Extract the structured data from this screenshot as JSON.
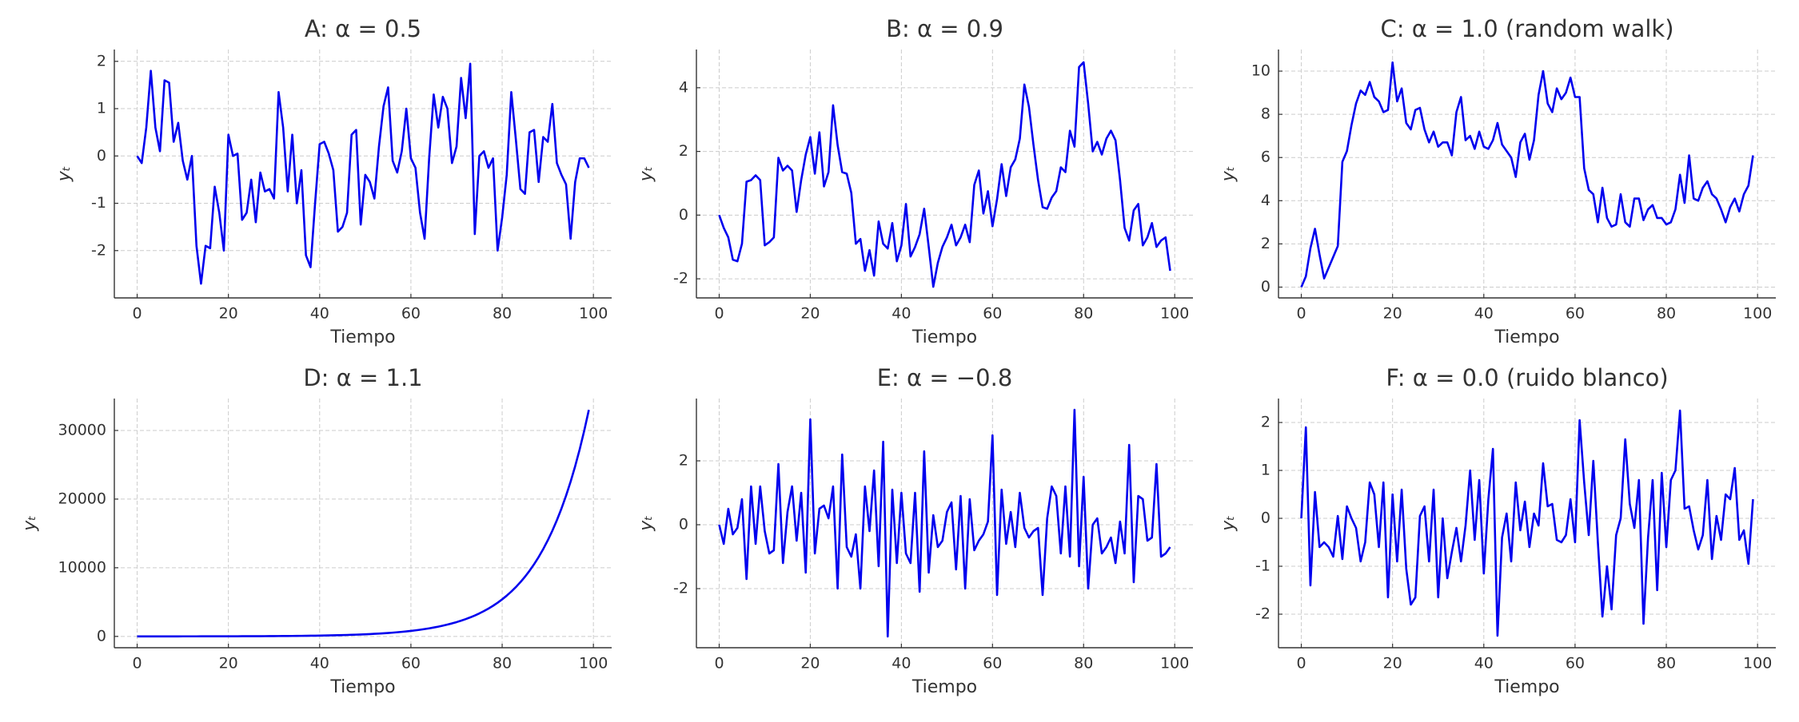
{
  "chart_data": [
    {
      "type": "line",
      "title": "A: α = 0.5",
      "xlabel": "Tiempo",
      "ylabel": "yₜ",
      "grid": true,
      "color": "#0000ee",
      "x": [
        0,
        1,
        2,
        3,
        4,
        5,
        6,
        7,
        8,
        9,
        10,
        11,
        12,
        13,
        14,
        15,
        16,
        17,
        18,
        19,
        20,
        21,
        22,
        23,
        24,
        25,
        26,
        27,
        28,
        29,
        30,
        31,
        32,
        33,
        34,
        35,
        36,
        37,
        38,
        39,
        40,
        41,
        42,
        43,
        44,
        45,
        46,
        47,
        48,
        49,
        50,
        51,
        52,
        53,
        54,
        55,
        56,
        57,
        58,
        59,
        60,
        61,
        62,
        63,
        64,
        65,
        66,
        67,
        68,
        69,
        70,
        71,
        72,
        73,
        74,
        75,
        76,
        77,
        78,
        79,
        80,
        81,
        82,
        83,
        84,
        85,
        86,
        87,
        88,
        89,
        90,
        91,
        92,
        93,
        94,
        95,
        96,
        97,
        98,
        99
      ],
      "values": [
        0,
        -0.15,
        0.6,
        1.8,
        0.6,
        0.1,
        1.6,
        1.55,
        0.3,
        0.7,
        -0.1,
        -0.5,
        0,
        -1.9,
        -2.7,
        -1.9,
        -1.95,
        -0.65,
        -1.2,
        -2.0,
        0.45,
        0,
        0.05,
        -1.35,
        -1.2,
        -0.5,
        -1.4,
        -0.35,
        -0.75,
        -0.7,
        -0.9,
        1.35,
        0.6,
        -0.75,
        0.45,
        -1.0,
        -0.3,
        -2.1,
        -2.35,
        -1.0,
        0.25,
        0.3,
        0.05,
        -0.3,
        -1.6,
        -1.5,
        -1.2,
        0.45,
        0.55,
        -1.45,
        -0.4,
        -0.55,
        -0.9,
        0.2,
        1.05,
        1.45,
        -0.1,
        -0.35,
        0.1,
        1.0,
        -0.05,
        -0.25,
        -1.2,
        -1.75,
        -0.05,
        1.3,
        0.6,
        1.25,
        1.0,
        -0.15,
        0.2,
        1.65,
        0.8,
        1.95,
        -1.65,
        0,
        0.1,
        -0.25,
        -0.05,
        -2.0,
        -1.3,
        -0.4,
        1.35,
        0.35,
        -0.7,
        -0.8,
        0.5,
        0.55,
        -0.55,
        0.4,
        0.3,
        1.1,
        -0.15,
        -0.4,
        -0.6,
        -1.75,
        -0.55,
        -0.05,
        -0.05,
        -0.25
      ],
      "xlim": [
        -5,
        104
      ],
      "xticks": [
        0,
        20,
        40,
        60,
        80,
        100
      ],
      "ylim": [
        -3.0,
        2.25
      ],
      "yticks": [
        -2,
        -1,
        0,
        1,
        2
      ]
    },
    {
      "type": "line",
      "title": "B: α = 0.9",
      "xlabel": "Tiempo",
      "ylabel": "yₜ",
      "grid": true,
      "color": "#0000ee",
      "x": [
        0,
        1,
        2,
        3,
        4,
        5,
        6,
        7,
        8,
        9,
        10,
        11,
        12,
        13,
        14,
        15,
        16,
        17,
        18,
        19,
        20,
        21,
        22,
        23,
        24,
        25,
        26,
        27,
        28,
        29,
        30,
        31,
        32,
        33,
        34,
        35,
        36,
        37,
        38,
        39,
        40,
        41,
        42,
        43,
        44,
        45,
        46,
        47,
        48,
        49,
        50,
        51,
        52,
        53,
        54,
        55,
        56,
        57,
        58,
        59,
        60,
        61,
        62,
        63,
        64,
        65,
        66,
        67,
        68,
        69,
        70,
        71,
        72,
        73,
        74,
        75,
        76,
        77,
        78,
        79,
        80,
        81,
        82,
        83,
        84,
        85,
        86,
        87,
        88,
        89,
        90,
        91,
        92,
        93,
        94,
        95,
        96,
        97,
        98,
        99
      ],
      "values": [
        0,
        -0.4,
        -0.7,
        -1.4,
        -1.45,
        -0.9,
        1.05,
        1.1,
        1.25,
        1.1,
        -0.95,
        -0.85,
        -0.7,
        1.8,
        1.4,
        1.55,
        1.4,
        0.1,
        1.1,
        1.9,
        2.45,
        1.3,
        2.6,
        0.9,
        1.35,
        3.45,
        2.2,
        1.35,
        1.3,
        0.7,
        -0.9,
        -0.75,
        -1.75,
        -1.1,
        -1.9,
        -0.2,
        -0.9,
        -1.05,
        -0.25,
        -1.45,
        -0.95,
        0.35,
        -1.3,
        -1.0,
        -0.6,
        0.2,
        -1.0,
        -2.25,
        -1.5,
        -1.0,
        -0.7,
        -0.3,
        -0.95,
        -0.7,
        -0.3,
        -0.85,
        0.95,
        1.4,
        0.05,
        0.75,
        -0.35,
        0.5,
        1.6,
        0.6,
        1.5,
        1.75,
        2.4,
        4.1,
        3.4,
        2.2,
        1.1,
        0.25,
        0.2,
        0.55,
        0.75,
        1.5,
        1.35,
        2.65,
        2.15,
        4.65,
        4.8,
        3.5,
        2.0,
        2.3,
        1.9,
        2.4,
        2.65,
        2.35,
        1.1,
        -0.4,
        -0.8,
        0.15,
        0.35,
        -0.95,
        -0.7,
        -0.25,
        -1.0,
        -0.8,
        -0.7,
        -1.75
      ],
      "xlim": [
        -5,
        104
      ],
      "xticks": [
        0,
        20,
        40,
        60,
        80,
        100
      ],
      "ylim": [
        -2.6,
        5.2
      ],
      "yticks": [
        -2,
        0,
        2,
        4
      ]
    },
    {
      "type": "line",
      "title": "C: α = 1.0 (random walk)",
      "xlabel": "Tiempo",
      "ylabel": "yₜ",
      "grid": true,
      "color": "#0000ee",
      "x": [
        0,
        1,
        2,
        3,
        4,
        5,
        6,
        7,
        8,
        9,
        10,
        11,
        12,
        13,
        14,
        15,
        16,
        17,
        18,
        19,
        20,
        21,
        22,
        23,
        24,
        25,
        26,
        27,
        28,
        29,
        30,
        31,
        32,
        33,
        34,
        35,
        36,
        37,
        38,
        39,
        40,
        41,
        42,
        43,
        44,
        45,
        46,
        47,
        48,
        49,
        50,
        51,
        52,
        53,
        54,
        55,
        56,
        57,
        58,
        59,
        60,
        61,
        62,
        63,
        64,
        65,
        66,
        67,
        68,
        69,
        70,
        71,
        72,
        73,
        74,
        75,
        76,
        77,
        78,
        79,
        80,
        81,
        82,
        83,
        84,
        85,
        86,
        87,
        88,
        89,
        90,
        91,
        92,
        93,
        94,
        95,
        96,
        97,
        98,
        99
      ],
      "values": [
        0,
        0.5,
        1.8,
        2.7,
        1.5,
        0.4,
        0.9,
        1.4,
        1.9,
        5.8,
        6.3,
        7.5,
        8.5,
        9.1,
        8.9,
        9.5,
        8.8,
        8.6,
        8.1,
        8.2,
        10.4,
        8.6,
        9.2,
        7.6,
        7.3,
        8.2,
        8.3,
        7.3,
        6.7,
        7.2,
        6.5,
        6.7,
        6.7,
        6.1,
        8.1,
        8.8,
        6.8,
        7.0,
        6.4,
        7.2,
        6.5,
        6.4,
        6.8,
        7.6,
        6.6,
        6.3,
        6.0,
        5.1,
        6.7,
        7.1,
        5.9,
        6.8,
        8.9,
        10.0,
        8.5,
        8.1,
        9.2,
        8.7,
        9.0,
        9.7,
        8.8,
        8.8,
        5.5,
        4.5,
        4.3,
        3.0,
        4.6,
        3.2,
        2.8,
        2.9,
        4.3,
        3.0,
        2.8,
        4.1,
        4.1,
        3.1,
        3.6,
        3.8,
        3.2,
        3.2,
        2.9,
        3.0,
        3.6,
        5.2,
        3.9,
        6.1,
        4.1,
        4.0,
        4.6,
        4.9,
        4.3,
        4.1,
        3.6,
        3.0,
        3.7,
        4.1,
        3.5,
        4.3,
        4.7,
        6.1
      ],
      "xlim": [
        -5,
        104
      ],
      "xticks": [
        0,
        20,
        40,
        60,
        80,
        100
      ],
      "ylim": [
        -0.5,
        11
      ],
      "yticks": [
        0,
        2,
        4,
        6,
        8,
        10
      ]
    },
    {
      "type": "line",
      "title": "D: α = 1.1",
      "xlabel": "Tiempo",
      "ylabel": "yₜ",
      "grid": true,
      "color": "#0000ee",
      "x": [
        0,
        1,
        2,
        3,
        4,
        5,
        6,
        7,
        8,
        9,
        10,
        11,
        12,
        13,
        14,
        15,
        16,
        17,
        18,
        19,
        20,
        21,
        22,
        23,
        24,
        25,
        26,
        27,
        28,
        29,
        30,
        31,
        32,
        33,
        34,
        35,
        36,
        37,
        38,
        39,
        40,
        41,
        42,
        43,
        44,
        45,
        46,
        47,
        48,
        49,
        50,
        51,
        52,
        53,
        54,
        55,
        56,
        57,
        58,
        59,
        60,
        61,
        62,
        63,
        64,
        65,
        66,
        67,
        68,
        69,
        70,
        71,
        72,
        73,
        74,
        75,
        76,
        77,
        78,
        79,
        80,
        81,
        82,
        83,
        84,
        85,
        86,
        87,
        88,
        89,
        90,
        91,
        92,
        93,
        94,
        95,
        96,
        97,
        98,
        99
      ],
      "values": [
        0,
        3,
        3,
        3,
        4,
        4,
        5,
        5,
        6,
        6,
        7,
        7,
        8,
        9,
        10,
        11,
        12,
        13,
        15,
        16,
        18,
        19,
        21,
        24,
        26,
        28,
        31,
        34,
        38,
        42,
        46,
        51,
        56,
        61,
        67,
        74,
        81,
        90,
        99,
        108,
        119,
        131,
        144,
        159,
        175,
        192,
        211,
        232,
        255,
        281,
        309,
        340,
        374,
        412,
        453,
        498,
        548,
        603,
        663,
        729,
        802,
        882,
        970,
        1068,
        1174,
        1292,
        1421,
        1563,
        1719,
        1891,
        2080,
        2288,
        2517,
        2769,
        3046,
        3350,
        3685,
        4054,
        4459,
        4905,
        5396,
        5935,
        6529,
        7182,
        7900,
        8690,
        9559,
        10515,
        11566,
        12723,
        13995,
        15395,
        16934,
        18627,
        20490,
        22539,
        24793,
        27273,
        30000,
        33000
      ],
      "xlim": [
        -5,
        104
      ],
      "xticks": [
        0,
        20,
        40,
        60,
        80,
        100
      ],
      "ylim": [
        -1650,
        34650
      ],
      "yticks": [
        0,
        10000,
        20000,
        30000
      ]
    },
    {
      "type": "line",
      "title": "E: α = −0.8",
      "xlabel": "Tiempo",
      "ylabel": "yₜ",
      "grid": true,
      "color": "#0000ee",
      "x": [
        0,
        1,
        2,
        3,
        4,
        5,
        6,
        7,
        8,
        9,
        10,
        11,
        12,
        13,
        14,
        15,
        16,
        17,
        18,
        19,
        20,
        21,
        22,
        23,
        24,
        25,
        26,
        27,
        28,
        29,
        30,
        31,
        32,
        33,
        34,
        35,
        36,
        37,
        38,
        39,
        40,
        41,
        42,
        43,
        44,
        45,
        46,
        47,
        48,
        49,
        50,
        51,
        52,
        53,
        54,
        55,
        56,
        57,
        58,
        59,
        60,
        61,
        62,
        63,
        64,
        65,
        66,
        67,
        68,
        69,
        70,
        71,
        72,
        73,
        74,
        75,
        76,
        77,
        78,
        79,
        80,
        81,
        82,
        83,
        84,
        85,
        86,
        87,
        88,
        89,
        90,
        91,
        92,
        93,
        94,
        95,
        96,
        97,
        98,
        99
      ],
      "values": [
        0,
        -0.6,
        0.5,
        -0.3,
        -0.1,
        0.8,
        -1.7,
        1.2,
        -0.6,
        1.2,
        -0.2,
        -0.9,
        -0.8,
        1.9,
        -1.2,
        0.4,
        1.2,
        -0.5,
        1.0,
        -1.5,
        3.3,
        -0.9,
        0.5,
        0.6,
        0.2,
        1.2,
        -2.0,
        2.2,
        -0.7,
        -1.0,
        -0.3,
        -2.0,
        1.2,
        -0.2,
        1.7,
        -1.3,
        2.6,
        -3.5,
        1.1,
        -1.2,
        1.0,
        -0.9,
        -1.2,
        1.0,
        -2.1,
        2.3,
        -1.5,
        0.3,
        -0.7,
        -0.5,
        0.4,
        0.7,
        -1.4,
        0.9,
        -2.0,
        0.8,
        -0.8,
        -0.5,
        -0.3,
        0.1,
        2.8,
        -2.2,
        1.1,
        -0.6,
        0.4,
        -0.7,
        1.0,
        -0.1,
        -0.4,
        -0.2,
        -0.1,
        -2.2,
        0.2,
        1.2,
        0.9,
        -0.9,
        1.2,
        -1.0,
        3.6,
        -1.3,
        1.5,
        -2.0,
        0.0,
        0.2,
        -0.9,
        -0.7,
        -0.4,
        -1.2,
        0.1,
        -0.9,
        2.5,
        -1.8,
        0.9,
        0.8,
        -0.5,
        -0.4,
        1.9,
        -1.0,
        -0.9,
        -0.7
      ],
      "xlim": [
        -5,
        104
      ],
      "xticks": [
        0,
        20,
        40,
        60,
        80,
        100
      ],
      "ylim": [
        -3.85,
        3.95
      ],
      "yticks": [
        -2,
        0,
        2
      ]
    },
    {
      "type": "line",
      "title": "F: α = 0.0 (ruido blanco)",
      "xlabel": "Tiempo",
      "ylabel": "yₜ",
      "grid": true,
      "color": "#0000ee",
      "x": [
        0,
        1,
        2,
        3,
        4,
        5,
        6,
        7,
        8,
        9,
        10,
        11,
        12,
        13,
        14,
        15,
        16,
        17,
        18,
        19,
        20,
        21,
        22,
        23,
        24,
        25,
        26,
        27,
        28,
        29,
        30,
        31,
        32,
        33,
        34,
        35,
        36,
        37,
        38,
        39,
        40,
        41,
        42,
        43,
        44,
        45,
        46,
        47,
        48,
        49,
        50,
        51,
        52,
        53,
        54,
        55,
        56,
        57,
        58,
        59,
        60,
        61,
        62,
        63,
        64,
        65,
        66,
        67,
        68,
        69,
        70,
        71,
        72,
        73,
        74,
        75,
        76,
        77,
        78,
        79,
        80,
        81,
        82,
        83,
        84,
        85,
        86,
        87,
        88,
        89,
        90,
        91,
        92,
        93,
        94,
        95,
        96,
        97,
        98,
        99
      ],
      "values": [
        0,
        1.9,
        -1.4,
        0.55,
        -0.6,
        -0.5,
        -0.6,
        -0.8,
        0.05,
        -0.85,
        0.25,
        0,
        -0.2,
        -0.9,
        -0.5,
        0.75,
        0.5,
        -0.6,
        0.75,
        -1.65,
        0.5,
        -0.9,
        0.6,
        -1.05,
        -1.8,
        -1.65,
        0.05,
        0.25,
        -0.9,
        0.6,
        -1.65,
        0,
        -1.25,
        -0.7,
        -0.2,
        -0.9,
        -0.15,
        1.0,
        -0.45,
        0.8,
        -1.15,
        0.4,
        1.45,
        -2.45,
        -0.4,
        0.1,
        -0.9,
        0.75,
        -0.25,
        0.35,
        -0.6,
        0.1,
        -0.15,
        1.15,
        0.25,
        0.3,
        -0.45,
        -0.5,
        -0.35,
        0.4,
        -0.5,
        2.05,
        0.75,
        -0.35,
        1.2,
        -0.5,
        -2.05,
        -1.0,
        -1.9,
        -0.35,
        0,
        1.65,
        0.3,
        -0.2,
        0.8,
        -2.2,
        -0.4,
        0.8,
        -1.5,
        0.95,
        -0.6,
        0.8,
        1.0,
        2.25,
        0.2,
        0.25,
        -0.25,
        -0.65,
        -0.35,
        0.8,
        -0.85,
        0.05,
        -0.45,
        0.5,
        0.4,
        1.05,
        -0.45,
        -0.25,
        -0.95,
        0.4
      ],
      "xlim": [
        -5,
        104
      ],
      "xticks": [
        0,
        20,
        40,
        60,
        80,
        100
      ],
      "ylim": [
        -2.7,
        2.5
      ],
      "yticks": [
        -2,
        -1,
        0,
        1,
        2
      ]
    }
  ]
}
